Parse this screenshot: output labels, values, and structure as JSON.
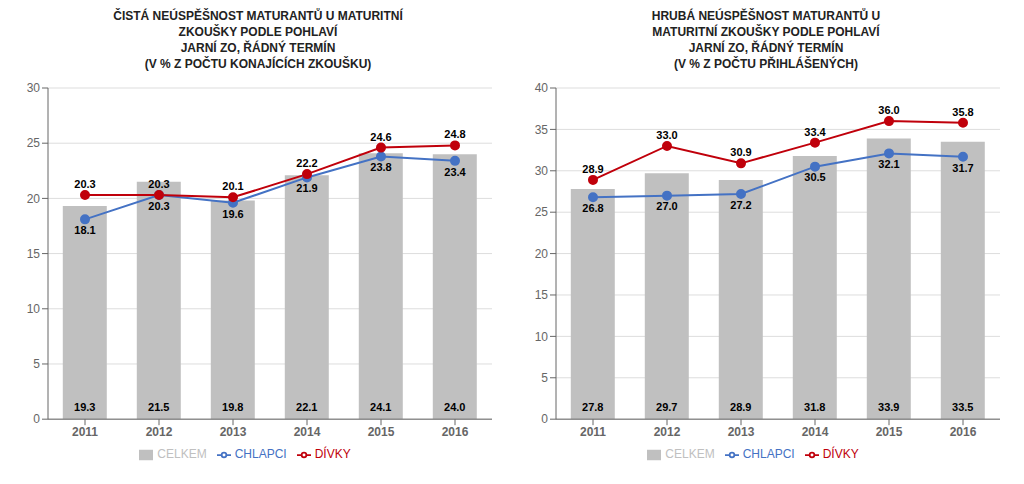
{
  "chart_data": [
    {
      "type": "bar",
      "title": "ČISTÁ NEÚSPĚŠNOST MATURANTŮ U MATURITNÍ\nZKOUŠKY PODLE POHLAVÍ\nJARNÍ ZO, ŘÁDNÝ TERMÍN\n(V % Z POČTU KONAJÍCÍCH ZKOUŠKU)",
      "categories": [
        "2011",
        "2012",
        "2013",
        "2014",
        "2015",
        "2016"
      ],
      "series": [
        {
          "name": "CELKEM",
          "type": "bar",
          "color": "#c0c0c0",
          "values": [
            19.3,
            21.5,
            19.8,
            22.1,
            24.1,
            24.0
          ],
          "value_labels": [
            "19.3",
            "21.5",
            "19.8",
            "22.1",
            "24.1",
            "24.0"
          ]
        },
        {
          "name": "CHLAPCI",
          "type": "line",
          "color": "#4472c4",
          "marker": "circle",
          "values": [
            18.1,
            20.3,
            19.6,
            21.9,
            23.8,
            23.4
          ],
          "value_labels": [
            "18.1",
            "20.3",
            "19.6",
            "21.9",
            "23.8",
            "23.4"
          ]
        },
        {
          "name": "DÍVKY",
          "type": "line",
          "color": "#c0000b",
          "marker": "circle",
          "values": [
            20.3,
            20.3,
            20.1,
            22.2,
            24.6,
            24.8
          ],
          "value_labels": [
            "20.3",
            "20.3",
            "20.1",
            "22.2",
            "24.6",
            "24.8"
          ]
        }
      ],
      "ylim": [
        0,
        30
      ],
      "yticks": [
        0,
        5,
        10,
        15,
        20,
        25,
        30
      ],
      "grid": true,
      "legend": "bottom",
      "data_labels": true
    },
    {
      "type": "bar",
      "title": "HRUBÁ NEÚSPĚŠNOST MATURANTŮ U\nMATURITNÍ ZKOUŠKY PODLE POHLAVÍ\nJARNÍ ZO, ŘÁDNÝ TERMÍN\n(V % Z POČTU PŘIHLÁŠENÝCH)",
      "categories": [
        "2011",
        "2012",
        "2013",
        "2014",
        "2015",
        "2016"
      ],
      "series": [
        {
          "name": "CELKEM",
          "type": "bar",
          "color": "#c0c0c0",
          "values": [
            27.8,
            29.7,
            28.9,
            31.8,
            33.9,
            33.5
          ],
          "value_labels": [
            "27.8",
            "29.7",
            "28.9",
            "31.8",
            "33.9",
            "33.5"
          ]
        },
        {
          "name": "CHLAPCI",
          "type": "line",
          "color": "#4472c4",
          "marker": "circle",
          "values": [
            26.8,
            27.0,
            27.2,
            30.5,
            32.1,
            31.7
          ],
          "value_labels": [
            "26.8",
            "27.0",
            "27.2",
            "30.5",
            "32.1",
            "31.7"
          ]
        },
        {
          "name": "DÍVKY",
          "type": "line",
          "color": "#c0000b",
          "marker": "circle",
          "values": [
            28.9,
            33.0,
            30.9,
            33.4,
            36.0,
            35.8
          ],
          "value_labels": [
            "28.9",
            "33.0",
            "30.9",
            "33.4",
            "36.0",
            "35.8"
          ]
        }
      ],
      "ylim": [
        0,
        40
      ],
      "yticks": [
        0,
        5,
        10,
        15,
        20,
        25,
        30,
        35,
        40
      ],
      "grid": true,
      "legend": "bottom",
      "data_labels": true
    }
  ]
}
